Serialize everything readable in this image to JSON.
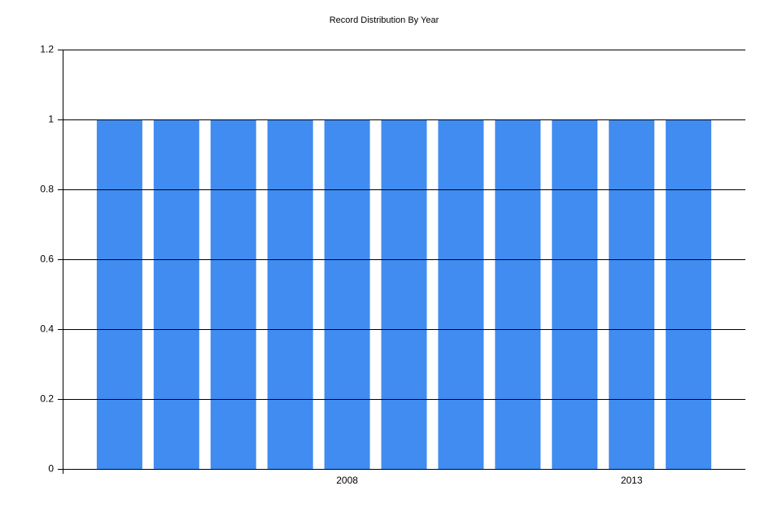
{
  "chart_data": {
    "type": "bar",
    "title": "Record Distribution By Year",
    "categories": [
      null,
      null,
      null,
      null,
      "2008",
      null,
      null,
      null,
      null,
      "2013",
      null
    ],
    "values": [
      1,
      1,
      1,
      1,
      1,
      1,
      1,
      1,
      1,
      1,
      1
    ],
    "color": "#418cf0",
    "ylim": [
      0,
      1.2
    ],
    "yticks": [
      0,
      0.2,
      0.4,
      0.6,
      0.8,
      1,
      1.2
    ],
    "grid": true
  }
}
